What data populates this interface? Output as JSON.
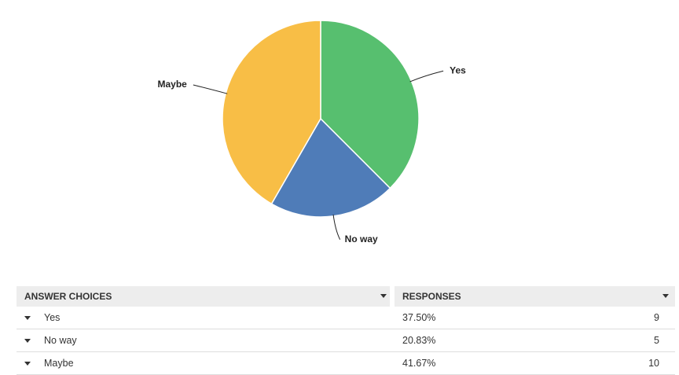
{
  "chart_data": {
    "type": "pie",
    "categories": [
      "Yes",
      "No way",
      "Maybe"
    ],
    "values": [
      37.5,
      20.83,
      41.67
    ],
    "value_labels": [
      "37.50%",
      "20.83%",
      "41.67%"
    ],
    "colors": [
      "#57bf6f",
      "#4f7cb8",
      "#f8be46"
    ]
  },
  "table": {
    "headers": [
      "ANSWER CHOICES",
      "RESPONSES"
    ],
    "counts": [
      9,
      5,
      10
    ]
  }
}
